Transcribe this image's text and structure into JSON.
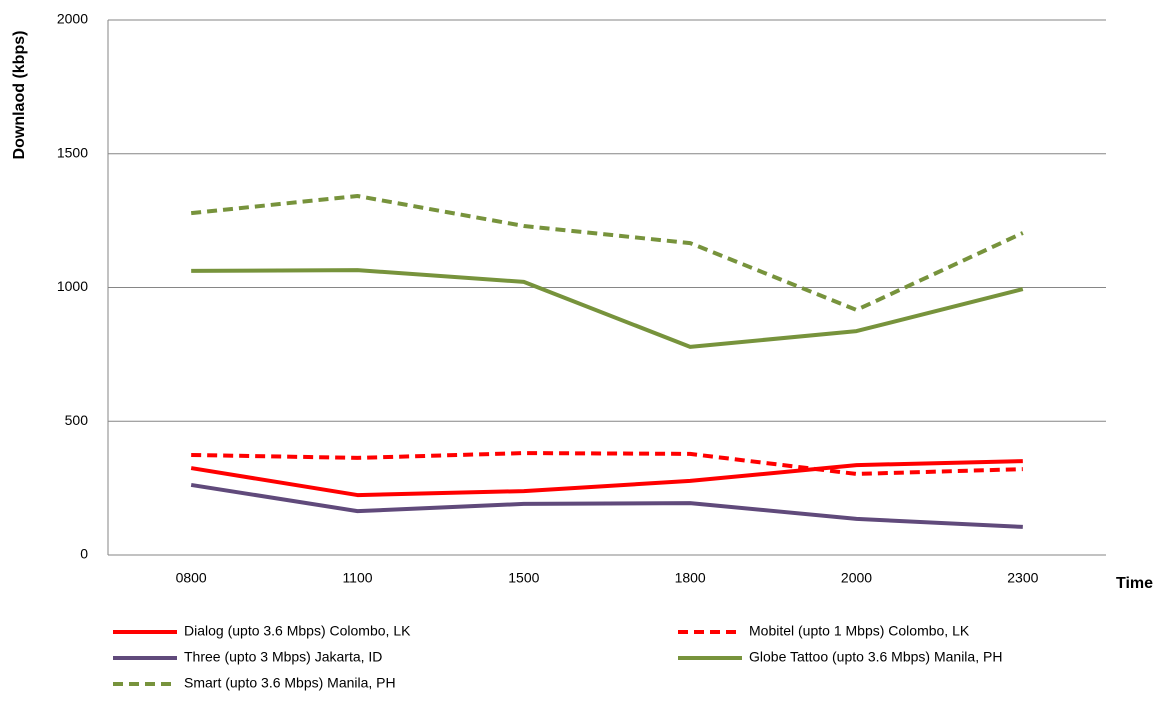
{
  "chart_data": {
    "type": "line",
    "ylabel": "Downlaod (kbps)",
    "xlabel": "Time",
    "categories": [
      "0800",
      "1100",
      "1500",
      "1800",
      "2000",
      "2300"
    ],
    "ylim": [
      0,
      2000
    ],
    "yticks": [
      0,
      500,
      1000,
      1500,
      2000
    ],
    "grid": true,
    "series": [
      {
        "name": "Dialog (upto 3.6 Mbps) Colombo, LK",
        "color": "#ff0000",
        "dashed": false,
        "values": [
          325,
          224,
          239,
          277,
          336,
          351
        ]
      },
      {
        "name": "Mobitel (upto 1 Mbps) Colombo, LK",
        "color": "#ff0000",
        "dashed": true,
        "values": [
          374,
          363,
          381,
          378,
          303,
          321
        ]
      },
      {
        "name": "Three (upto 3 Mbps) Jakarta, ID",
        "color": "#604a7b",
        "dashed": false,
        "values": [
          262,
          164,
          191,
          194,
          135,
          105
        ]
      },
      {
        "name": "Globe Tattoo (upto 3.6 Mbps) Manila, PH",
        "color": "#77933c",
        "dashed": false,
        "values": [
          1062,
          1065,
          1021,
          778,
          837,
          994
        ]
      },
      {
        "name": "Smart (upto 3.6 Mbps) Manila, PH",
        "color": "#77933c",
        "dashed": true,
        "values": [
          1278,
          1342,
          1230,
          1166,
          916,
          1204
        ]
      }
    ]
  }
}
